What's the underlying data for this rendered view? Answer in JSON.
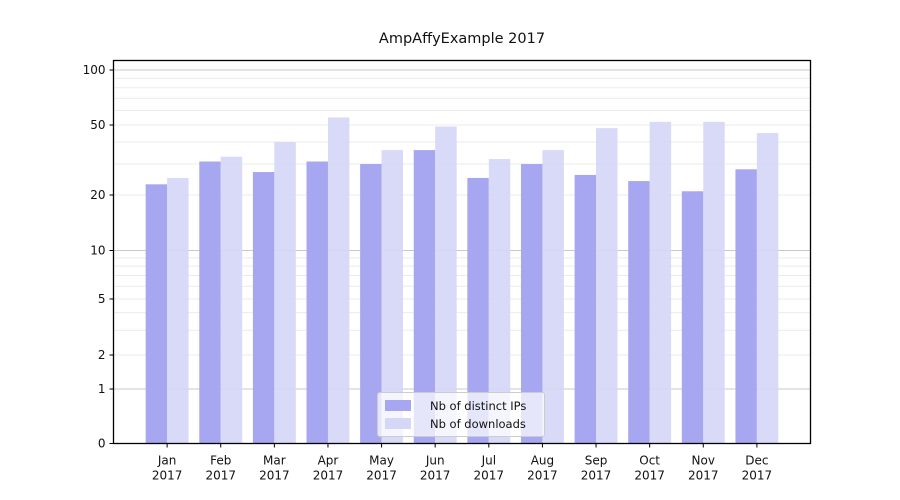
{
  "chart": {
    "title": "AmpAffyExample 2017"
  },
  "chart_data": {
    "type": "bar",
    "title": "AmpAffyExample 2017",
    "categories": [
      "Jan",
      "Feb",
      "Mar",
      "Apr",
      "May",
      "Jun",
      "Jul",
      "Aug",
      "Sep",
      "Oct",
      "Nov",
      "Dec"
    ],
    "tick_label_year": "2017",
    "series": [
      {
        "name": "Nb of distinct IPs",
        "color": "#a6a6f1",
        "values": [
          23,
          31,
          27,
          31,
          30,
          36,
          25,
          30,
          26,
          24,
          21,
          28
        ]
      },
      {
        "name": "Nb of downloads",
        "color": "#d6d6f7",
        "values": [
          25,
          33,
          40,
          55,
          36,
          49,
          32,
          36,
          48,
          52,
          52,
          45
        ]
      }
    ],
    "yscale": "log-like (symlog), labeled ticks 0,1,2,5,10,20,50,100",
    "yticks": [
      0,
      1,
      2,
      5,
      10,
      20,
      50,
      100
    ],
    "minor_gridline_values": [
      3,
      4,
      6,
      7,
      8,
      9,
      30,
      40,
      60,
      70,
      80,
      90
    ],
    "ylim": [
      0,
      110
    ],
    "grid": true,
    "legend_position": "inside lower-center",
    "colors": {
      "major_grid": "#c9c9c9",
      "minor_grid": "#ebebeb",
      "axis": "#000000",
      "text": "#111111"
    }
  }
}
